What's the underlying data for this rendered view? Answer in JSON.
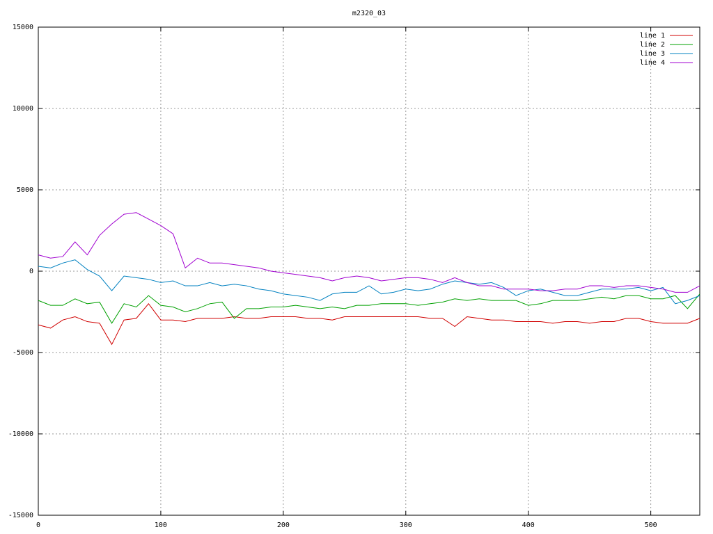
{
  "chart_data": {
    "type": "line",
    "title": "m2320_03",
    "x": [
      0,
      10,
      20,
      30,
      40,
      50,
      60,
      70,
      80,
      90,
      100,
      110,
      120,
      130,
      140,
      150,
      160,
      170,
      180,
      190,
      200,
      210,
      220,
      230,
      240,
      250,
      260,
      270,
      280,
      290,
      300,
      310,
      320,
      330,
      340,
      350,
      360,
      370,
      380,
      390,
      400,
      410,
      420,
      430,
      440,
      450,
      460,
      470,
      480,
      490,
      500,
      510,
      520,
      530,
      540
    ],
    "series": [
      {
        "name": "line 1",
        "color": "#d00000",
        "values": [
          -3300,
          -3500,
          -3000,
          -2800,
          -3100,
          -3200,
          -4500,
          -3000,
          -2900,
          -2000,
          -3000,
          -3000,
          -3100,
          -2900,
          -2900,
          -2900,
          -2800,
          -2900,
          -2900,
          -2800,
          -2800,
          -2800,
          -2900,
          -2900,
          -3000,
          -2800,
          -2800,
          -2800,
          -2800,
          -2800,
          -2800,
          -2800,
          -2900,
          -2900,
          -3400,
          -2800,
          -2900,
          -3000,
          -3000,
          -3100,
          -3100,
          -3100,
          -3200,
          -3100,
          -3100,
          -3200,
          -3100,
          -3100,
          -2900,
          -2900,
          -3100,
          -3200,
          -3200,
          -3200,
          -2900
        ]
      },
      {
        "name": "line 2",
        "color": "#00a000",
        "values": [
          -1800,
          -2100,
          -2100,
          -1700,
          -2000,
          -1900,
          -3200,
          -2000,
          -2200,
          -1500,
          -2100,
          -2200,
          -2500,
          -2300,
          -2000,
          -1900,
          -2900,
          -2300,
          -2300,
          -2200,
          -2200,
          -2100,
          -2200,
          -2300,
          -2200,
          -2300,
          -2100,
          -2100,
          -2000,
          -2000,
          -2000,
          -2100,
          -2000,
          -1900,
          -1700,
          -1800,
          -1700,
          -1800,
          -1800,
          -1800,
          -2100,
          -2000,
          -1800,
          -1800,
          -1800,
          -1700,
          -1600,
          -1700,
          -1500,
          -1500,
          -1700,
          -1700,
          -1500,
          -2300,
          -1400
        ]
      },
      {
        "name": "line 3",
        "color": "#0080c0",
        "values": [
          300,
          200,
          500,
          700,
          100,
          -300,
          -1200,
          -300,
          -400,
          -500,
          -700,
          -600,
          -900,
          -900,
          -700,
          -900,
          -800,
          -900,
          -1100,
          -1200,
          -1400,
          -1500,
          -1600,
          -1800,
          -1400,
          -1300,
          -1300,
          -900,
          -1400,
          -1300,
          -1100,
          -1200,
          -1100,
          -800,
          -600,
          -700,
          -800,
          -700,
          -1000,
          -1500,
          -1200,
          -1100,
          -1300,
          -1500,
          -1500,
          -1300,
          -1100,
          -1100,
          -1100,
          -1000,
          -1200,
          -1000,
          -2000,
          -1800,
          -1500
        ]
      },
      {
        "name": "line 4",
        "color": "#a000d0",
        "values": [
          1000,
          800,
          900,
          1800,
          1000,
          2200,
          2900,
          3500,
          3600,
          3200,
          2800,
          2300,
          200,
          800,
          500,
          500,
          400,
          300,
          200,
          0,
          -100,
          -200,
          -300,
          -400,
          -600,
          -400,
          -300,
          -400,
          -600,
          -500,
          -400,
          -400,
          -500,
          -700,
          -400,
          -700,
          -900,
          -900,
          -1100,
          -1100,
          -1100,
          -1200,
          -1200,
          -1100,
          -1100,
          -900,
          -900,
          -1000,
          -900,
          -900,
          -1000,
          -1100,
          -1300,
          -1300,
          -900
        ]
      }
    ],
    "xlim": [
      0,
      540
    ],
    "xticks": [
      0,
      100,
      200,
      300,
      400,
      500
    ],
    "ylim": [
      -15000,
      15000
    ],
    "yticks": [
      -15000,
      -10000,
      -5000,
      0,
      5000,
      10000,
      15000
    ],
    "grid": true,
    "legend": "top-right"
  }
}
